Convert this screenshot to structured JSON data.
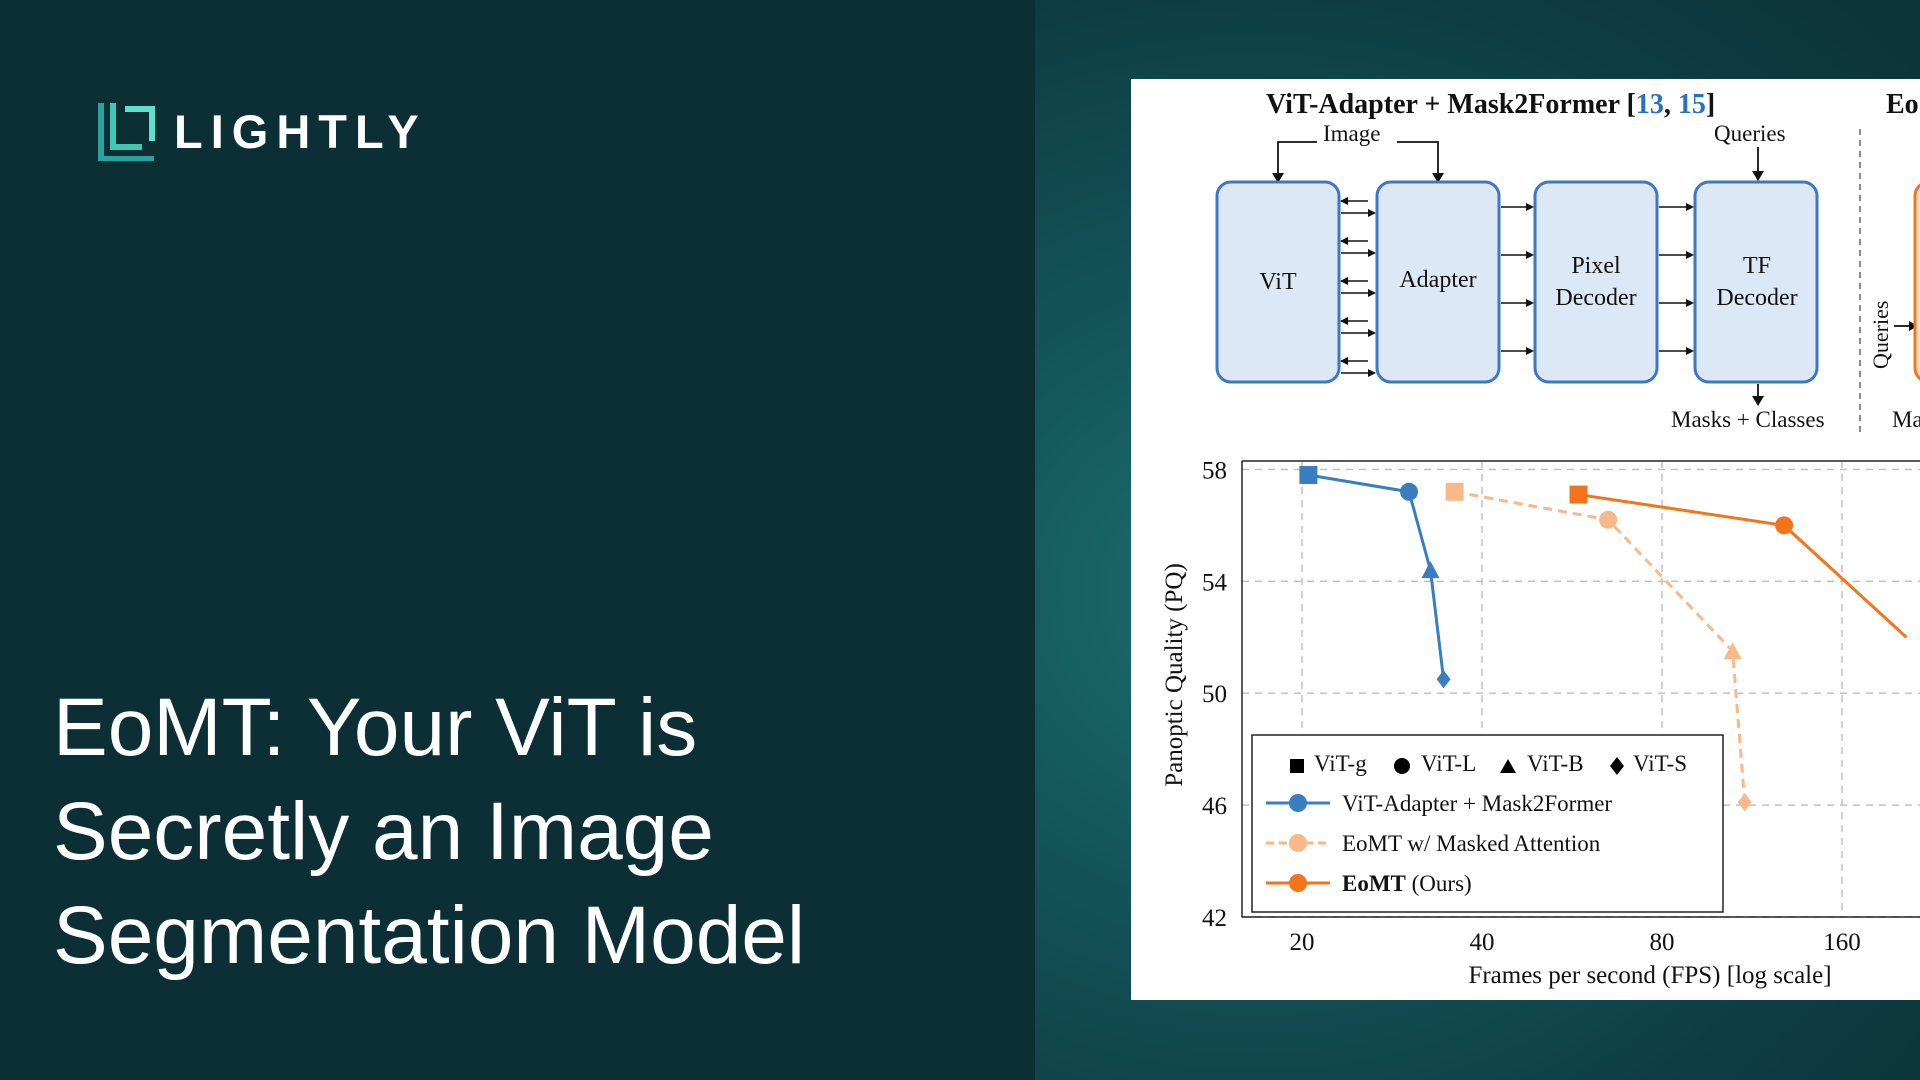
{
  "brand": {
    "name": "LIGHTLY",
    "accent_dark": "#1f8a8a",
    "accent_light": "#4fd6c4"
  },
  "headline": {
    "text": "EoMT: Your ViT is Secretly an Image Segmentation Model"
  },
  "figure": {
    "diagram": {
      "title_main": "ViT-Adapter + Mask2Former [",
      "ref_1": "13",
      "ref_sep": ", ",
      "ref_2": "15",
      "title_close": "]",
      "title_right": "Eo",
      "image_label": "Image",
      "queries_label": "Queries",
      "vertical_queries_label": "Queries",
      "blocks": [
        {
          "line1": "ViT",
          "line2": ""
        },
        {
          "line1": "Adapter",
          "line2": ""
        },
        {
          "line1": "Pixel",
          "line2": "Decoder"
        },
        {
          "line1": "TF",
          "line2": "Decoder"
        }
      ],
      "output_label": "Masks + Classes",
      "output_label_right": "Ma",
      "block_fill": "#dce8f5",
      "block_stroke": "#3d78c2"
    }
  },
  "chart_data": {
    "type": "line",
    "xlabel": "Frames per second (FPS) [log scale]",
    "ylabel": "Panoptic Quality (PQ)",
    "xscale": "log",
    "xticks": [
      20,
      40,
      80,
      160
    ],
    "yticks": [
      42,
      46,
      50,
      54,
      58
    ],
    "ylim": [
      42,
      58.3
    ],
    "grid": true,
    "legend_placement": "bottom-left",
    "legend_markers": [
      "ViT-g",
      "ViT-L",
      "ViT-B",
      "ViT-S"
    ],
    "series": [
      {
        "name": "ViT-Adapter + Mask2Former",
        "color": "#3a7dc0",
        "dashed": false,
        "points": [
          {
            "x": 20.5,
            "y": 57.8,
            "marker": "square"
          },
          {
            "x": 30.2,
            "y": 57.2,
            "marker": "circle"
          },
          {
            "x": 32.8,
            "y": 54.4,
            "marker": "triangle"
          },
          {
            "x": 34.5,
            "y": 50.5,
            "marker": "diamond"
          }
        ]
      },
      {
        "name": "EoMT w/ Masked Attention",
        "color": "#f6b98a",
        "dashed": true,
        "points": [
          {
            "x": 36,
            "y": 57.2,
            "marker": "square"
          },
          {
            "x": 65,
            "y": 56.2,
            "marker": "circle"
          },
          {
            "x": 105,
            "y": 51.5,
            "marker": "triangle"
          },
          {
            "x": 110,
            "y": 46.1,
            "marker": "diamond"
          }
        ]
      },
      {
        "name": "EoMT (Ours)",
        "name_bold": "EoMT",
        "name_rest": " (Ours)",
        "color": "#f4741c",
        "dashed": false,
        "points": [
          {
            "x": 58,
            "y": 57.1,
            "marker": "square"
          },
          {
            "x": 128,
            "y": 56.0,
            "marker": "circle"
          },
          {
            "x": 205,
            "y": 52.0,
            "marker": "none"
          }
        ]
      }
    ]
  }
}
